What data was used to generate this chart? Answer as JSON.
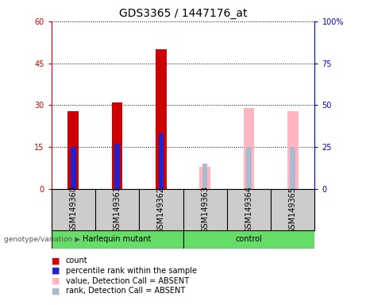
{
  "title": "GDS3365 / 1447176_at",
  "samples": [
    "GSM149360",
    "GSM149361",
    "GSM149362",
    "GSM149363",
    "GSM149364",
    "GSM149365"
  ],
  "count_values": [
    28,
    31,
    50,
    null,
    null,
    null
  ],
  "rank_values": [
    25,
    27,
    33,
    null,
    null,
    null
  ],
  "absent_value": [
    null,
    null,
    null,
    8,
    29,
    28
  ],
  "absent_rank": [
    null,
    null,
    null,
    15,
    25,
    25
  ],
  "left_yticks": [
    0,
    15,
    30,
    45,
    60
  ],
  "right_ytick_labels": [
    "0",
    "25",
    "50",
    "75",
    "100%"
  ],
  "ylim_left": [
    0,
    60
  ],
  "ylim_right": [
    0,
    100
  ],
  "bar_width": 0.25,
  "rank_bar_width": 0.12,
  "count_color": "#CC0000",
  "rank_color": "#2222CC",
  "absent_value_color": "#FFB6C1",
  "absent_rank_color": "#AABBD0",
  "tick_label_fontsize": 7,
  "title_fontsize": 10,
  "legend_fontsize": 7,
  "bg_color": "#CCCCCC",
  "green_color": "#66DD66",
  "left_axis_color": "#CC0000",
  "right_axis_color": "#0000CC"
}
